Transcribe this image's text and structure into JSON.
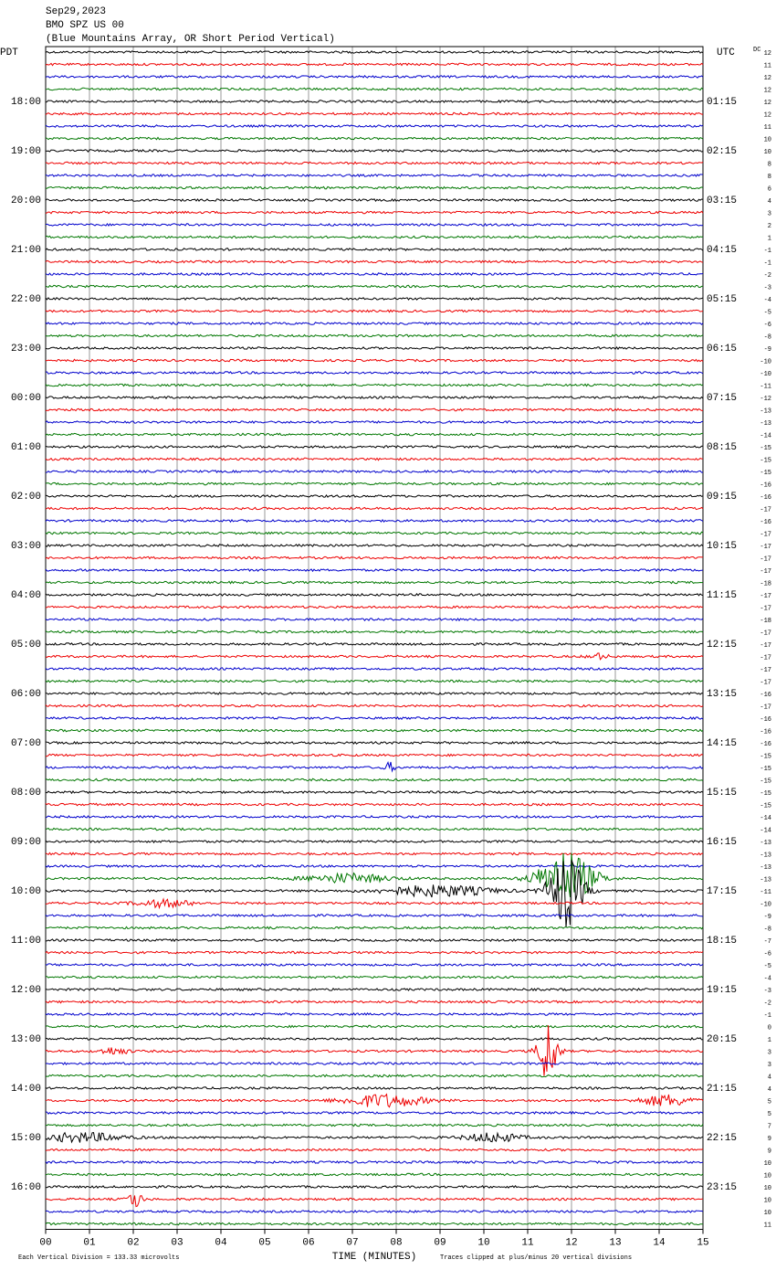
{
  "header": {
    "date": "Sep29,2023",
    "station": "BMO SPZ US 00",
    "description": "(Blue Mountains Array, OR Short Period Vertical)"
  },
  "left_label": "PDT",
  "right_label": "UTC",
  "dc_label": "DC",
  "pdt_times": [
    "18:00",
    "19:00",
    "20:00",
    "21:00",
    "22:00",
    "23:00",
    "00:00",
    "01:00",
    "02:00",
    "03:00",
    "04:00",
    "05:00",
    "06:00",
    "07:00",
    "08:00",
    "09:00",
    "10:00",
    "11:00",
    "12:00",
    "13:00",
    "14:00",
    "15:00",
    "16:00"
  ],
  "utc_times": [
    "01:15",
    "02:15",
    "03:15",
    "04:15",
    "05:15",
    "06:15",
    "07:15",
    "08:15",
    "09:15",
    "10:15",
    "11:15",
    "12:15",
    "13:15",
    "14:15",
    "15:15",
    "16:15",
    "17:15",
    "18:15",
    "19:15",
    "20:15",
    "21:15",
    "22:15",
    "23:15"
  ],
  "dc_offsets": [
    12,
    11,
    12,
    12,
    12,
    12,
    11,
    10,
    10,
    8,
    8,
    6,
    4,
    3,
    2,
    1,
    -1,
    -1,
    -2,
    -3,
    -4,
    -5,
    -6,
    -8,
    -9,
    -10,
    -10,
    -11,
    -12,
    -13,
    -13,
    -14,
    -15,
    -15,
    -15,
    -16,
    -16,
    -17,
    -16,
    -17,
    -17,
    -17,
    -17,
    -18,
    -17,
    -17,
    -18,
    -17,
    -17,
    -17,
    -17,
    -17,
    -16,
    -17,
    -16,
    -16,
    -16,
    -15,
    -15,
    -15,
    -15,
    -15,
    -14,
    -14,
    -13,
    -13,
    -13,
    -13,
    -11,
    -10,
    -9,
    -8,
    -7,
    -6,
    -5,
    -4,
    -3,
    -2,
    -1,
    0,
    1,
    3,
    3,
    4,
    4,
    5,
    5,
    7,
    9,
    9,
    10,
    10,
    10,
    10,
    10,
    11
  ],
  "x_ticks": [
    "00",
    "01",
    "02",
    "03",
    "04",
    "05",
    "06",
    "07",
    "08",
    "09",
    "10",
    "11",
    "12",
    "13",
    "14",
    "15"
  ],
  "x_label": "TIME (MINUTES)",
  "footer_left": "Each Vertical Division =  133.33 microvolts",
  "footer_right": "Traces clipped at plus/minus 20 vertical divisions"
}
